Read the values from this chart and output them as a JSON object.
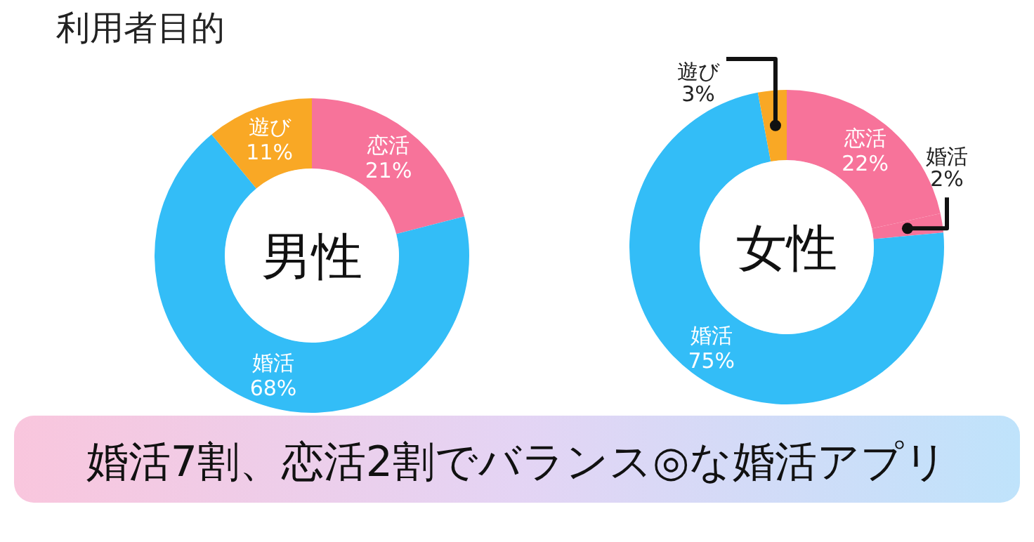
{
  "chart_data": [
    {
      "type": "donut",
      "title": "利用者目的",
      "subtitle": "男性",
      "categories": [
        "恋活",
        "婚活",
        "遊び"
      ],
      "values": [
        21,
        68,
        11
      ],
      "colors": [
        "#f7739a",
        "#33bdf7",
        "#f9a825"
      ],
      "value_labels": [
        "21%",
        "68%",
        "11%"
      ]
    },
    {
      "type": "donut",
      "subtitle": "女性",
      "categories": [
        "恋活",
        "婚活",
        "婚活",
        "遊び"
      ],
      "values": [
        22,
        2,
        75,
        3
      ],
      "colors": [
        "#f7739a",
        "#f7739a",
        "#33bdf7",
        "#f9a825"
      ],
      "value_labels": [
        "22%",
        "2%",
        "75%",
        "3%"
      ],
      "annotations": [
        "婚活7割、恋活2割でバランス◎な婚活アプリ"
      ]
    }
  ]
}
